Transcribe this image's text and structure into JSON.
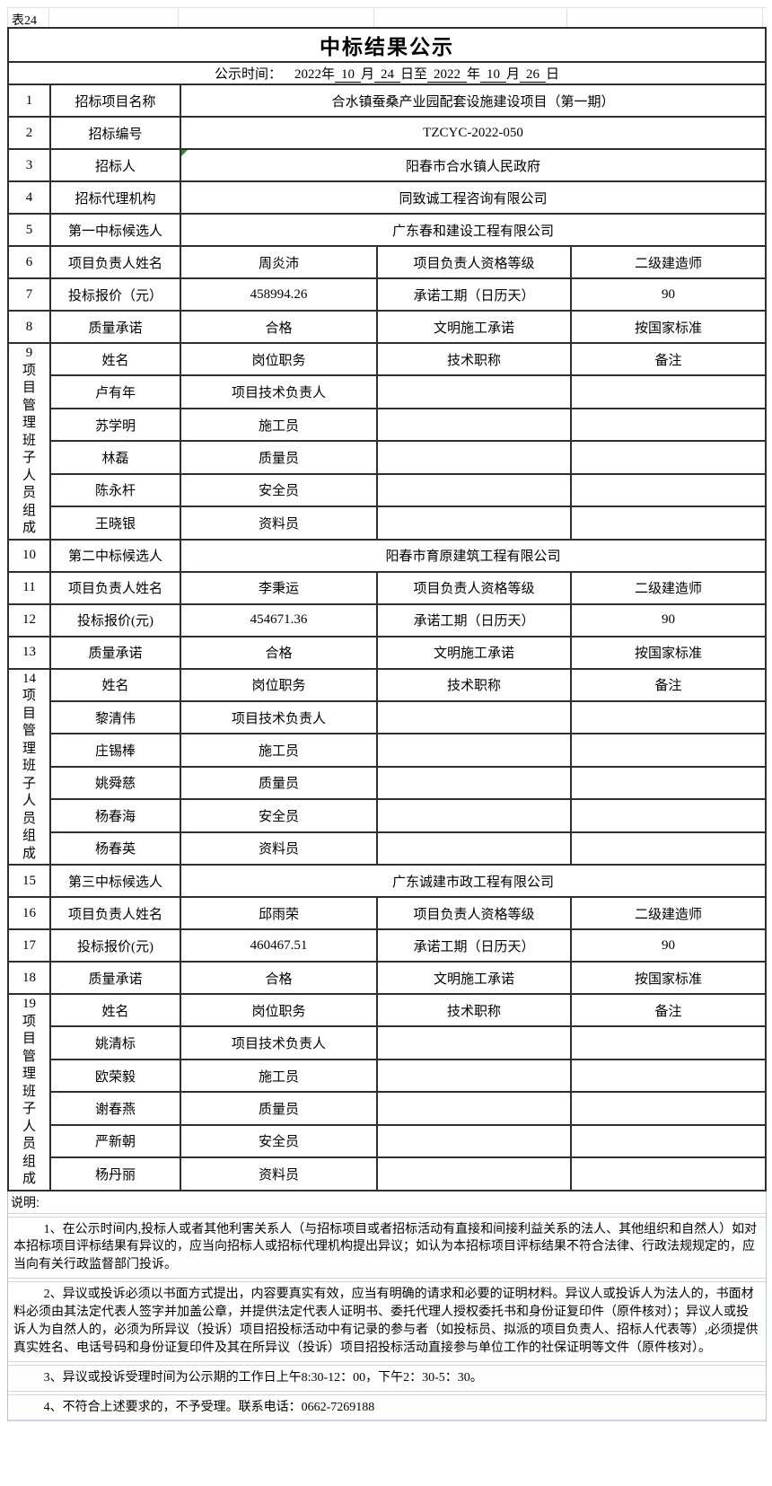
{
  "sheet_tag": "表24",
  "title": "中标结果公示",
  "publicity_time": {
    "label": "公示时间：",
    "parts": [
      {
        "t": "2022年",
        "u": false
      },
      {
        "t": "10",
        "u": true
      },
      {
        "t": "月",
        "u": false
      },
      {
        "t": "24",
        "u": true
      },
      {
        "t": "日至",
        "u": false
      },
      {
        "t": "2022",
        "u": true
      },
      {
        "t": "年",
        "u": false
      },
      {
        "t": "10",
        "u": true
      },
      {
        "t": "月",
        "u": false
      },
      {
        "t": "26",
        "u": true
      },
      {
        "t": "日",
        "u": false
      }
    ]
  },
  "table": {
    "rows": [
      {
        "type": "full",
        "no": "1",
        "label": "招标项目名称",
        "value": "合水镇蚕桑产业园配套设施建设项目（第一期）"
      },
      {
        "type": "full",
        "no": "2",
        "label": "招标编号",
        "value": "TZCYC-2022-050"
      },
      {
        "type": "full",
        "no": "3",
        "label": "招标人",
        "value": "阳春市合水镇人民政府",
        "marker": true
      },
      {
        "type": "full",
        "no": "4",
        "label": "招标代理机构",
        "value": "同致诚工程咨询有限公司"
      },
      {
        "type": "full",
        "no": "5",
        "label": "第一中标候选人",
        "value": "广东春和建设工程有限公司"
      },
      {
        "type": "four",
        "no": "6",
        "label": "项目负责人姓名",
        "value1": "周炎沛",
        "label2": "项目负责人资格等级",
        "value2": "二级建造师"
      },
      {
        "type": "four",
        "no": "7",
        "label": "投标报价（元）",
        "value1": "458994.26",
        "label2": "承诺工期（日历天）",
        "value2": "90"
      },
      {
        "type": "four",
        "no": "8",
        "label": "质量承诺",
        "value1": "合格",
        "label2": "文明施工承诺",
        "value2": "按国家标准"
      },
      {
        "type": "group",
        "no": "9",
        "vtext": "9\n项\n目\n管\n理\n班\n子\n人\n员\n组\n成",
        "members": [
          [
            "姓名",
            "岗位职务",
            "技术职称",
            "备注"
          ],
          [
            "卢有年",
            "项目技术负责人",
            "",
            ""
          ],
          [
            "苏学明",
            "施工员",
            "",
            ""
          ],
          [
            "林磊",
            "质量员",
            "",
            ""
          ],
          [
            "陈永杆",
            "安全员",
            "",
            ""
          ],
          [
            "王晓银",
            "资料员",
            "",
            ""
          ]
        ]
      },
      {
        "type": "full",
        "no": "10",
        "label": "第二中标候选人",
        "value": "阳春市育原建筑工程有限公司"
      },
      {
        "type": "four",
        "no": "11",
        "label": "项目负责人姓名",
        "value1": "李秉运",
        "label2": "项目负责人资格等级",
        "value2": "二级建造师"
      },
      {
        "type": "four",
        "no": "12",
        "label": "投标报价(元)",
        "value1": "454671.36",
        "label2": "承诺工期（日历天）",
        "value2": "90"
      },
      {
        "type": "four",
        "no": "13",
        "label": "质量承诺",
        "value1": "合格",
        "label2": "文明施工承诺",
        "value2": "按国家标准"
      },
      {
        "type": "group",
        "no": "14",
        "vtext": "14\n项\n目\n管\n理\n班\n子\n人\n员\n组\n成",
        "members": [
          [
            "姓名",
            "岗位职务",
            "技术职称",
            "备注"
          ],
          [
            "黎清伟",
            "项目技术负责人",
            "",
            ""
          ],
          [
            "庄锡棒",
            "施工员",
            "",
            ""
          ],
          [
            "姚舜慈",
            "质量员",
            "",
            ""
          ],
          [
            "杨春海",
            "安全员",
            "",
            ""
          ],
          [
            "杨春英",
            "资料员",
            "",
            ""
          ]
        ]
      },
      {
        "type": "full",
        "no": "15",
        "label": "第三中标候选人",
        "value": "广东诚建市政工程有限公司"
      },
      {
        "type": "four",
        "no": "16",
        "label": "项目负责人姓名",
        "value1": "邱雨荣",
        "label2": "项目负责人资格等级",
        "value2": "二级建造师"
      },
      {
        "type": "four",
        "no": "17",
        "label": "投标报价(元)",
        "value1": "460467.51",
        "label2": "承诺工期（日历天）",
        "value2": "90"
      },
      {
        "type": "four",
        "no": "18",
        "label": "质量承诺",
        "value1": "合格",
        "label2": "文明施工承诺",
        "value2": "按国家标准"
      },
      {
        "type": "group",
        "no": "19",
        "vtext": "19\n项\n目\n管\n理\n班\n子\n人\n员\n组\n成",
        "members": [
          [
            "姓名",
            "岗位职务",
            "技术职称",
            "备注"
          ],
          [
            "姚清标",
            "项目技术负责人",
            "",
            ""
          ],
          [
            "欧荣毅",
            "施工员",
            "",
            ""
          ],
          [
            "谢春燕",
            "质量员",
            "",
            ""
          ],
          [
            "严新朝",
            "安全员",
            "",
            ""
          ],
          [
            "杨丹丽",
            "资料员",
            "",
            ""
          ]
        ]
      }
    ]
  },
  "notes": {
    "label": "说明:",
    "items": [
      "1、在公示时间内,投标人或者其他利害关系人（与招标项目或者招标活动有直接和间接利益关系的法人、其他组织和自然人）如对本招标项目评标结果有异议的，应当向招标人或招标代理机构提出异议；如认为本招标项目评标结果不符合法律、行政法规规定的，应当向有关行政监督部门投诉。",
      "2、异议或投诉必须以书面方式提出，内容要真实有效，应当有明确的请求和必要的证明材料。异议人或投诉人为法人的，书面材料必须由其法定代表人签字并加盖公章，并提供法定代表人证明书、委托代理人授权委托书和身份证复印件（原件核对）；异议人或投诉人为自然人的，必须为所异议（投诉）项目招投标活动中有记录的参与者（如投标员、拟派的项目负责人、招标人代表等）,必须提供真实姓名、电话号码和身份证复印件及其在所异议（投诉）项目招投标活动直接参与单位工作的社保证明等文件（原件核对）。",
      "3、异议或投诉受理时间为公示期的工作日上午8:30-12：00，下午2：30-5：30。",
      "4、不符合上述要求的，不予受理。联系电话：0662-7269188"
    ]
  },
  "colors": {
    "grid_dark": "#2f2f2f",
    "grid_light": "#d9dee8",
    "error_indicator_green": "#2e8b2e"
  }
}
